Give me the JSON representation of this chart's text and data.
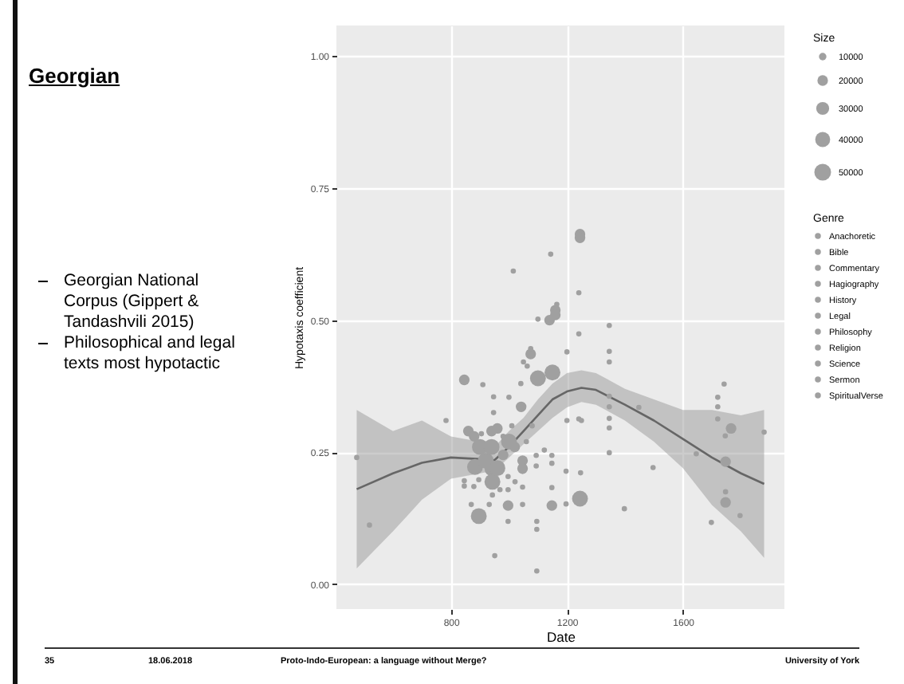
{
  "chart_data": {
    "type": "bubble",
    "title": "Georgian",
    "xlabel": "Date",
    "ylabel": "Hypotaxis coefficient",
    "legend_title": "Genre",
    "legend": "right",
    "grid": true,
    "xlim": [
      405,
      1950
    ],
    "xticks": [
      800,
      1200,
      1600
    ],
    "ylim": [
      -0.047,
      1.058
    ],
    "yticks": [
      {
        "value": 0,
        "label": "0.00"
      },
      {
        "value": 0.25,
        "label": "0.25"
      },
      {
        "value": 0.5,
        "label": "0.50"
      },
      {
        "value": 0.75,
        "label": "0.75"
      },
      {
        "value": 1,
        "label": "1.00"
      }
    ],
    "size_legend": [
      10000,
      20000,
      30000,
      40000,
      50000
    ],
    "annotations": [
      "Size",
      "Georgian National Corpus (Gippert & Tandashvili 2015)",
      "Philosophical and legal texts most hypotactic",
      "35",
      "18.06.2018",
      "Proto-Indo-European: a language without Merge?",
      "University of York"
    ],
    "series": [
      {
        "color": "#a0a0a0",
        "x": [
          475,
          519,
          951,
          1096,
          896,
          997,
          1096,
          1096,
          870,
          932,
          997,
          1047,
          1148,
          1197,
          1245,
          1148,
          1398,
          1497,
          1346,
          1646,
          1747,
          1747,
          1747,
          1698,
          1797,
          846,
          846,
          879,
          896,
          883,
          943,
          943,
          943,
          969,
          997,
          997,
          1021,
          1047,
          1047,
          1047,
          1047,
          1094,
          1094,
          1122,
          1148,
          1148,
          1197,
          1247,
          920,
          860,
          880,
          905,
          940,
          960,
          980,
          1000,
          1020,
          900,
          940,
          980,
          960,
          1060,
          1080,
          1010,
          1015,
          1144,
          1245,
          1245,
          1100,
          1140,
          1160,
          1165,
          1160,
          1241,
          1075,
          1075,
          1050,
          1063,
          1150,
          1100,
          846,
          910,
          1041,
          947,
          1000,
          1042,
          783,
          947,
          1241,
          1241,
          1346,
          1346,
          1346,
          1346,
          1346,
          1448,
          1346,
          1346,
          1742,
          1720,
          1720,
          1720,
          1766,
          1880,
          1746,
          1200,
          1200,
          1250
        ],
        "values": [
          0.24,
          0.112,
          0.054,
          0.025,
          0.129,
          0.119,
          0.119,
          0.104,
          0.151,
          0.151,
          0.149,
          0.151,
          0.149,
          0.152,
          0.162,
          0.183,
          0.143,
          0.221,
          0.249,
          0.247,
          0.232,
          0.175,
          0.155,
          0.117,
          0.13,
          0.196,
          0.186,
          0.185,
          0.198,
          0.222,
          0.219,
          0.194,
          0.169,
          0.179,
          0.204,
          0.179,
          0.194,
          0.214,
          0.184,
          0.234,
          0.219,
          0.224,
          0.244,
          0.254,
          0.244,
          0.229,
          0.214,
          0.211,
          0.234,
          0.29,
          0.28,
          0.285,
          0.29,
          0.295,
          0.28,
          0.27,
          0.26,
          0.26,
          0.26,
          0.245,
          0.22,
          0.27,
          0.3,
          0.3,
          0.593,
          0.625,
          0.663,
          0.656,
          0.502,
          0.5,
          0.519,
          0.53,
          0.51,
          0.552,
          0.436,
          0.446,
          0.421,
          0.413,
          0.401,
          0.39,
          0.387,
          0.378,
          0.38,
          0.355,
          0.354,
          0.336,
          0.31,
          0.325,
          0.474,
          0.313,
          0.49,
          0.441,
          0.421,
          0.356,
          0.336,
          0.335,
          0.314,
          0.296,
          0.379,
          0.354,
          0.336,
          0.313,
          0.295,
          0.288,
          0.281,
          0.44,
          0.31,
          0.31
        ],
        "sizes": [
          5000,
          5000,
          5000,
          5000,
          45000,
          5000,
          5000,
          5000,
          5000,
          5000,
          20000,
          5000,
          20000,
          5000,
          45000,
          5000,
          5000,
          5000,
          5000,
          5000,
          20000,
          5000,
          20000,
          5000,
          5000,
          5000,
          5000,
          5000,
          5000,
          45000,
          45000,
          45000,
          5000,
          5000,
          5000,
          5000,
          5000,
          5000,
          5000,
          20000,
          20000,
          5000,
          5000,
          5000,
          5000,
          5000,
          5000,
          5000,
          45000,
          20000,
          20000,
          5000,
          20000,
          20000,
          5000,
          45000,
          20000,
          45000,
          45000,
          20000,
          45000,
          5000,
          5000,
          5000,
          5000,
          5000,
          20000,
          20000,
          5000,
          20000,
          20000,
          5000,
          20000,
          5000,
          20000,
          5000,
          5000,
          5000,
          45000,
          45000,
          20000,
          5000,
          5000,
          5000,
          5000,
          20000,
          5000,
          5000,
          5000,
          5000,
          5000,
          5000,
          5000,
          5000,
          5000,
          5000,
          5000,
          5000,
          5000,
          5000,
          5000,
          5000,
          20000,
          5000,
          5000,
          5000,
          5000,
          5000
        ]
      },
      {
        "type": "line",
        "color": "#666666",
        "x": [
          475,
          600,
          700,
          800,
          900,
          950,
          1000,
          1050,
          1100,
          1150,
          1200,
          1250,
          1300,
          1400,
          1500,
          1600,
          1700,
          1800,
          1880
        ],
        "values": [
          0.18,
          0.21,
          0.23,
          0.24,
          0.237,
          0.235,
          0.26,
          0.29,
          0.32,
          0.35,
          0.365,
          0.372,
          0.368,
          0.34,
          0.31,
          0.275,
          0.24,
          0.21,
          0.19
        ],
        "lower": [
          0.03,
          0.1,
          0.16,
          0.2,
          0.21,
          0.215,
          0.24,
          0.265,
          0.29,
          0.315,
          0.335,
          0.345,
          0.34,
          0.31,
          0.27,
          0.22,
          0.15,
          0.1,
          0.05
        ],
        "upper": [
          0.33,
          0.29,
          0.31,
          0.28,
          0.27,
          0.26,
          0.29,
          0.315,
          0.35,
          0.38,
          0.4,
          0.405,
          0.4,
          0.37,
          0.35,
          0.33,
          0.33,
          0.32,
          0.33
        ]
      },
      {
        "name": "Anachoretic",
        "color": "#a0a0a0"
      },
      {
        "name": "Bible",
        "color": "#a0a0a0"
      },
      {
        "name": "Commentary",
        "color": "#a0a0a0"
      },
      {
        "name": "Hagiography",
        "color": "#a0a0a0"
      },
      {
        "name": "History",
        "color": "#a0a0a0"
      },
      {
        "name": "Legal",
        "color": "#a0a0a0"
      },
      {
        "name": "Philosophy",
        "color": "#a0a0a0"
      },
      {
        "name": "Religion",
        "color": "#a0a0a0"
      },
      {
        "name": "Science",
        "color": "#a0a0a0"
      },
      {
        "name": "Sermon",
        "color": "#a0a0a0"
      },
      {
        "name": "SpiritualVerse",
        "color": "#a0a0a0"
      }
    ]
  }
}
